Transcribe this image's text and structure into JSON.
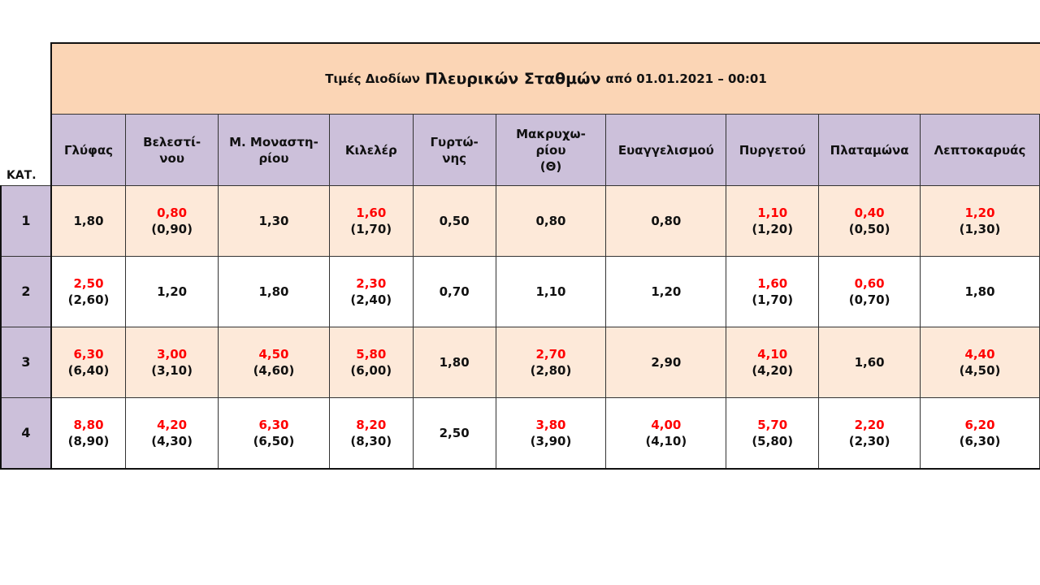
{
  "title": {
    "prefix": "Τιμές Διοδίων",
    "main": "Πλευρικών Σταθμών",
    "suffix": "από 01.01.2021 – 00:01"
  },
  "category_label": "ΚΑΤ.",
  "columns": [
    "Γλύφας",
    "Βελεστί-\nνου",
    "Μ. Μοναστη-\nρίου",
    "Κιλελέρ",
    "Γυρτώ-\nνης",
    "Μακρυχω-\nρίου\n(Θ)",
    "Ευαγγελισμού",
    "Πυργετού",
    "Πλαταμώνα",
    "Λεπτοκαρυάς"
  ],
  "colors": {
    "title_bg": "#fbd5b5",
    "header_bg": "#ccc0da",
    "odd_row_bg": "#fde9d9",
    "new_price": "#ff0000"
  },
  "rows": [
    {
      "category": "1",
      "cells": [
        {
          "new": "1,80"
        },
        {
          "new": "0,80",
          "old": "(0,90)"
        },
        {
          "new": "1,30"
        },
        {
          "new": "1,60",
          "old": "(1,70)"
        },
        {
          "new": "0,50"
        },
        {
          "new": "0,80"
        },
        {
          "new": "0,80"
        },
        {
          "new": "1,10",
          "old": "(1,20)"
        },
        {
          "new": "0,40",
          "old": "(0,50)"
        },
        {
          "new": "1,20",
          "old": "(1,30)"
        }
      ]
    },
    {
      "category": "2",
      "cells": [
        {
          "new": "2,50",
          "old": "(2,60)"
        },
        {
          "new": "1,20"
        },
        {
          "new": "1,80"
        },
        {
          "new": "2,30",
          "old": "(2,40)"
        },
        {
          "new": "0,70"
        },
        {
          "new": "1,10"
        },
        {
          "new": "1,20"
        },
        {
          "new": "1,60",
          "old": "(1,70)"
        },
        {
          "new": "0,60",
          "old": "(0,70)"
        },
        {
          "new": "1,80"
        }
      ]
    },
    {
      "category": "3",
      "cells": [
        {
          "new": "6,30",
          "old": "(6,40)"
        },
        {
          "new": "3,00",
          "old": "(3,10)"
        },
        {
          "new": "4,50",
          "old": "(4,60)"
        },
        {
          "new": "5,80",
          "old": "(6,00)"
        },
        {
          "new": "1,80"
        },
        {
          "new": "2,70",
          "old": "(2,80)"
        },
        {
          "new": "2,90"
        },
        {
          "new": "4,10",
          "old": "(4,20)"
        },
        {
          "new": "1,60"
        },
        {
          "new": "4,40",
          "old": "(4,50)"
        }
      ]
    },
    {
      "category": "4",
      "cells": [
        {
          "new": "8,80",
          "old": "(8,90)"
        },
        {
          "new": "4,20",
          "old": "(4,30)"
        },
        {
          "new": "6,30",
          "old": "(6,50)"
        },
        {
          "new": "8,20",
          "old": "(8,30)"
        },
        {
          "new": "2,50"
        },
        {
          "new": "3,80",
          "old": "(3,90)"
        },
        {
          "new": "4,00",
          "old": "(4,10)"
        },
        {
          "new": "5,70",
          "old": "(5,80)"
        },
        {
          "new": "2,20",
          "old": "(2,30)"
        },
        {
          "new": "6,20",
          "old": "(6,30)"
        }
      ]
    }
  ]
}
